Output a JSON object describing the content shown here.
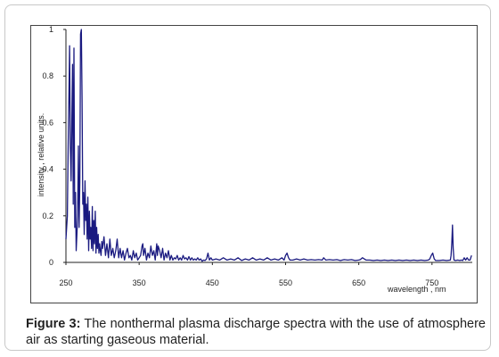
{
  "chart_data": {
    "type": "line",
    "title": "",
    "xlabel": "wavelength , nm",
    "ylabel": "intensity , relative units.",
    "xlim": [
      250,
      805
    ],
    "ylim": [
      0,
      1
    ],
    "x_ticks": [
      "250",
      "350",
      "450",
      "550",
      "650",
      "750"
    ],
    "y_ticks": [
      "0",
      "0.2",
      "0.4",
      "0.6",
      "0.8",
      "1"
    ],
    "grid": false,
    "line_color": "#1a1a80",
    "series": [
      {
        "x": [
          250,
          252,
          253,
          254,
          255,
          256,
          257,
          258,
          259,
          260,
          261,
          262,
          263,
          264,
          265,
          266,
          267,
          268,
          269,
          270,
          271,
          272,
          273,
          274,
          275,
          276,
          277,
          278,
          279,
          280,
          281,
          282,
          283,
          284,
          285,
          286,
          287,
          288,
          289,
          290,
          291,
          292,
          293,
          294,
          295,
          296,
          297,
          298,
          299,
          300,
          302,
          304,
          306,
          308,
          310,
          312,
          314,
          316,
          318,
          320,
          322,
          324,
          326,
          328,
          330,
          332,
          334,
          336,
          338,
          340,
          342,
          344,
          346,
          348,
          350,
          352,
          354,
          355,
          356,
          358,
          360,
          362,
          364,
          366,
          368,
          370,
          372,
          374,
          375,
          376,
          378,
          380,
          382,
          384,
          386,
          388,
          390,
          392,
          394,
          396,
          398,
          400,
          402,
          404,
          406,
          408,
          410,
          412,
          414,
          416,
          418,
          420,
          422,
          424,
          426,
          428,
          430,
          432,
          434,
          436,
          438,
          440,
          442,
          444,
          446,
          448,
          450,
          455,
          460,
          465,
          470,
          475,
          480,
          485,
          490,
          495,
          500,
          505,
          510,
          515,
          520,
          525,
          530,
          535,
          540,
          545,
          548,
          550,
          552,
          554,
          556,
          560,
          565,
          570,
          575,
          580,
          585,
          590,
          595,
          600,
          602,
          605,
          610,
          615,
          620,
          625,
          630,
          635,
          640,
          645,
          650,
          652,
          655,
          660,
          665,
          670,
          675,
          680,
          685,
          690,
          695,
          700,
          705,
          710,
          715,
          720,
          725,
          730,
          735,
          740,
          745,
          747,
          749,
          751,
          753,
          755,
          760,
          765,
          770,
          775,
          776,
          777,
          778,
          779,
          780,
          782,
          785,
          788,
          790,
          792,
          794,
          796,
          798,
          800,
          802,
          804
        ],
        "y": [
          0.1,
          0.2,
          0.5,
          0.7,
          0.93,
          0.5,
          0.35,
          0.6,
          0.85,
          0.25,
          0.92,
          0.15,
          0.3,
          0.05,
          0.12,
          0.2,
          0.5,
          0.15,
          0.35,
          0.98,
          1.0,
          0.7,
          0.25,
          0.3,
          0.12,
          0.35,
          0.18,
          0.25,
          0.1,
          0.28,
          0.05,
          0.22,
          0.1,
          0.15,
          0.06,
          0.24,
          0.05,
          0.18,
          0.08,
          0.22,
          0.04,
          0.15,
          0.06,
          0.12,
          0.04,
          0.08,
          0.05,
          0.03,
          0.09,
          0.06,
          0.11,
          0.03,
          0.08,
          0.02,
          0.1,
          0.03,
          0.06,
          0.02,
          0.05,
          0.1,
          0.02,
          0.06,
          0.02,
          0.05,
          0.01,
          0.04,
          0.06,
          0.02,
          0.03,
          0.01,
          0.05,
          0.02,
          0.04,
          0.01,
          0.02,
          0.03,
          0.07,
          0.08,
          0.03,
          0.06,
          0.01,
          0.04,
          0.02,
          0.07,
          0.03,
          0.05,
          0.01,
          0.08,
          0.03,
          0.07,
          0.05,
          0.02,
          0.06,
          0.01,
          0.04,
          0.02,
          0.05,
          0.01,
          0.03,
          0.01,
          0.02,
          0.015,
          0.03,
          0.01,
          0.02,
          0.01,
          0.03,
          0.015,
          0.02,
          0.01,
          0.025,
          0.01,
          0.02,
          0.01,
          0.015,
          0.01,
          0.02,
          0.01,
          0.015,
          0.005,
          0.01,
          0.008,
          0.015,
          0.04,
          0.01,
          0.02,
          0.01,
          0.015,
          0.01,
          0.02,
          0.01,
          0.015,
          0.01,
          0.02,
          0.008,
          0.015,
          0.01,
          0.02,
          0.01,
          0.015,
          0.01,
          0.02,
          0.01,
          0.015,
          0.01,
          0.02,
          0.01,
          0.03,
          0.04,
          0.02,
          0.01,
          0.01,
          0.015,
          0.01,
          0.015,
          0.01,
          0.012,
          0.01,
          0.012,
          0.01,
          0.02,
          0.01,
          0.012,
          0.01,
          0.012,
          0.008,
          0.012,
          0.01,
          0.012,
          0.008,
          0.01,
          0.012,
          0.02,
          0.01,
          0.01,
          0.008,
          0.01,
          0.008,
          0.01,
          0.008,
          0.01,
          0.008,
          0.01,
          0.008,
          0.01,
          0.008,
          0.01,
          0.008,
          0.01,
          0.008,
          0.01,
          0.015,
          0.03,
          0.04,
          0.015,
          0.008,
          0.008,
          0.01,
          0.008,
          0.01,
          0.03,
          0.08,
          0.16,
          0.06,
          0.01,
          0.008,
          0.01,
          0.008,
          0.01,
          0.008,
          0.02,
          0.01,
          0.02,
          0.01,
          0.01,
          0.03
        ]
      }
    ]
  },
  "caption": {
    "label": "Figure 3:",
    "text": " The nonthermal plasma discharge spectra with the use of atmosphere air as starting gaseous material."
  }
}
